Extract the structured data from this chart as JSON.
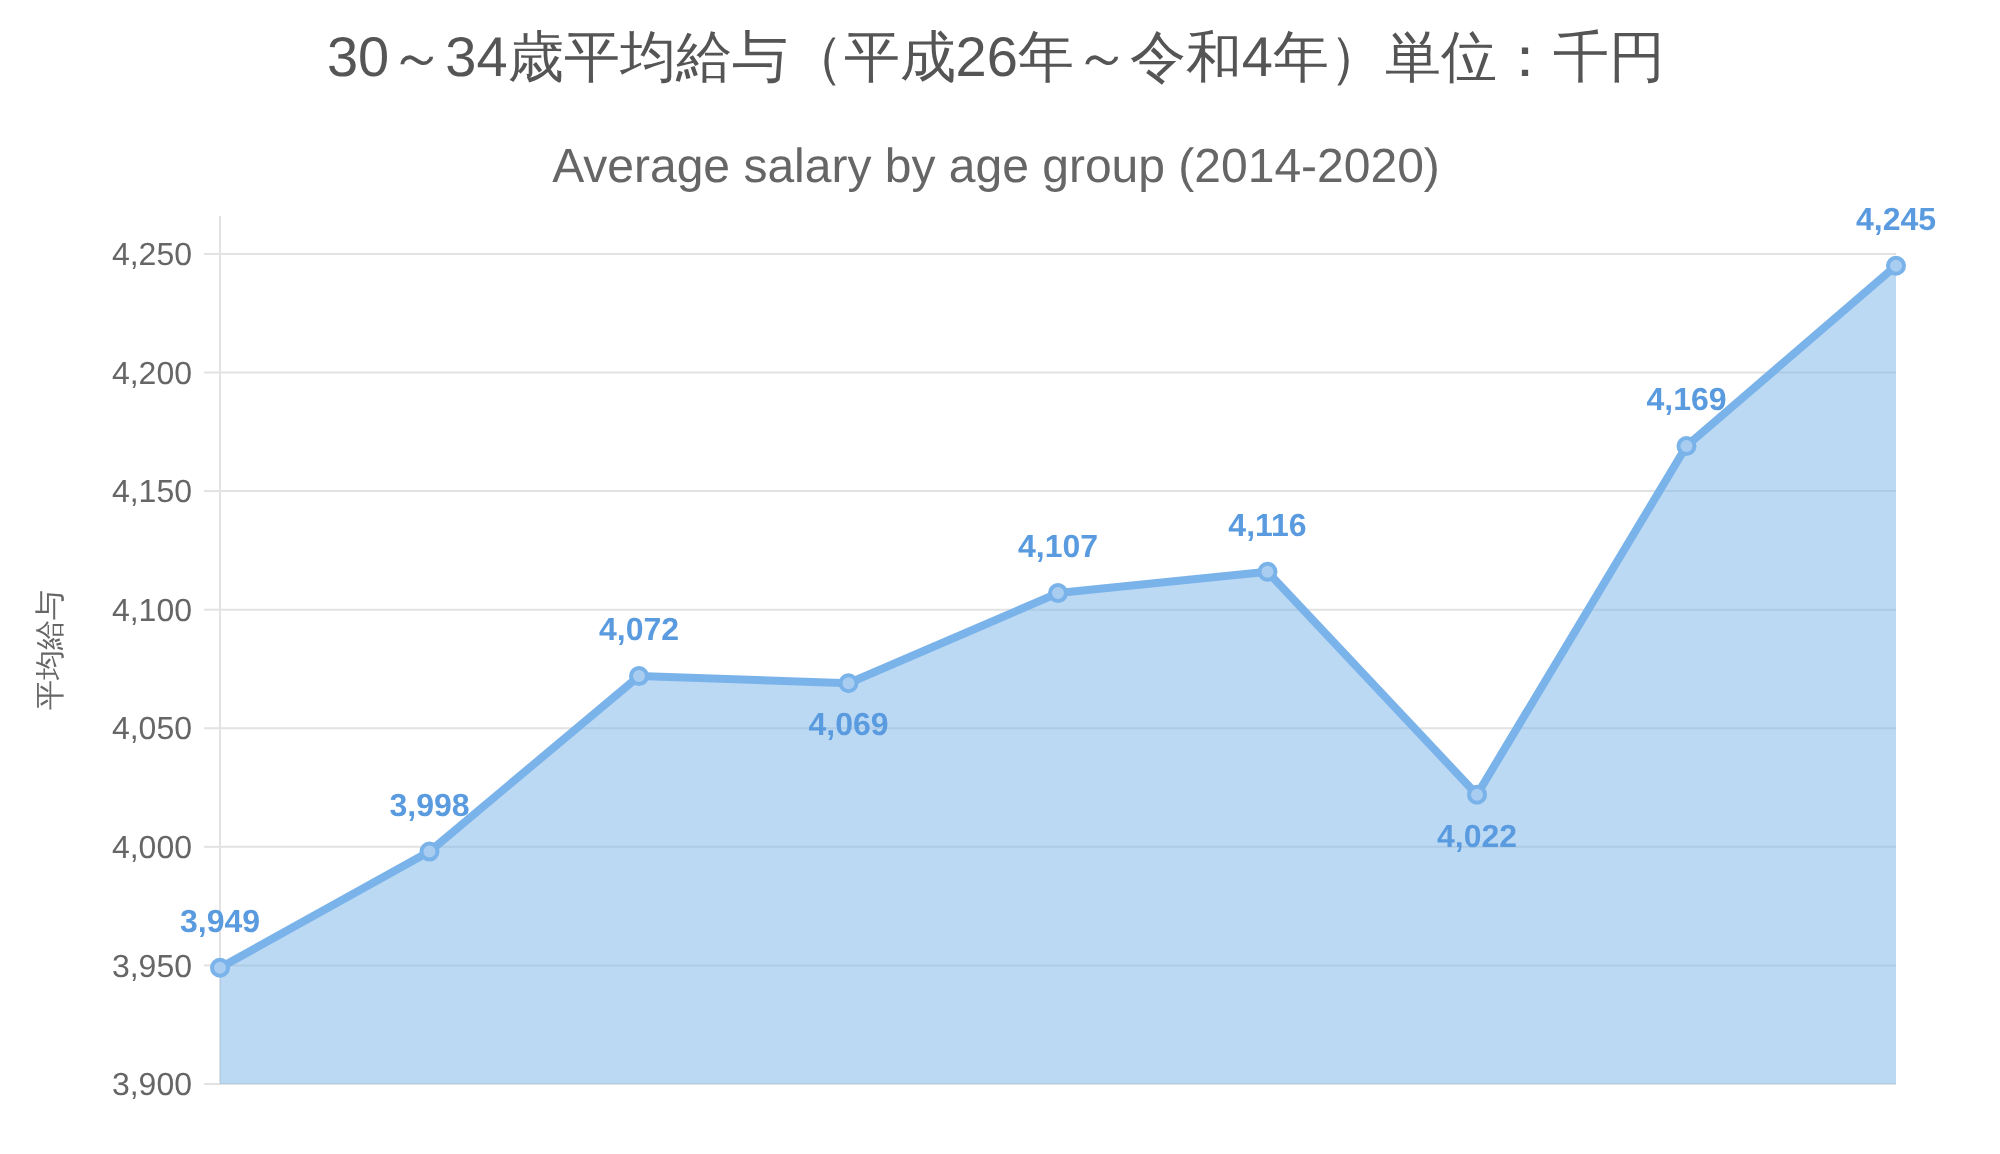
{
  "chart_data": {
    "type": "area",
    "title": "30～34歳平均給与（平成26年～令和4年）単位：千円",
    "subtitle": "Average salary by age group (2014-2020)",
    "ylabel": "平均給与",
    "categories": [
      null,
      null,
      null,
      null,
      null,
      null,
      null,
      null,
      null
    ],
    "series": [
      {
        "color": "#7ab3ea",
        "values": [
          3949,
          3998,
          4072,
          4069,
          4107,
          4116,
          4022,
          4169,
          4245
        ],
        "value_labels": [
          "3,949",
          "3,998",
          "4,072",
          "4,069",
          "4,107",
          "4,116",
          "4,022",
          "4,169",
          "4,245"
        ]
      }
    ],
    "ylim": [
      3900,
      4266
    ],
    "yticks": [
      {
        "value": 3900,
        "label": "3,900"
      },
      {
        "value": 3950,
        "label": "3,950"
      },
      {
        "value": 4000,
        "label": "4,000"
      },
      {
        "value": 4050,
        "label": "4,050"
      },
      {
        "value": 4100,
        "label": "4,100"
      },
      {
        "value": 4150,
        "label": "4,150"
      },
      {
        "value": 4200,
        "label": "4,200"
      },
      {
        "value": 4250,
        "label": "4,250"
      }
    ],
    "grid": "y",
    "marker": "circle"
  }
}
